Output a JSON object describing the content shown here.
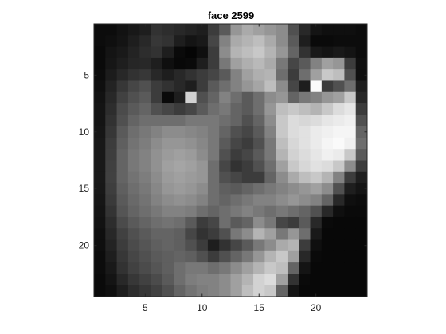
{
  "chart_data": {
    "type": "heatmap",
    "title": "face 2599",
    "xlabel": "",
    "ylabel": "",
    "colormap": "gray",
    "value_range": [
      0,
      255
    ],
    "rows": 24,
    "cols": 24,
    "xlim": [
      0.5,
      24.5
    ],
    "ylim": [
      0.5,
      24.5
    ],
    "y_direction": "reverse",
    "x_ticks": [
      5,
      10,
      15,
      20
    ],
    "y_ticks": [
      5,
      10,
      15,
      20
    ],
    "x_tick_labels": [
      "5",
      "10",
      "15",
      "20"
    ],
    "y_tick_labels": [
      "5",
      "10",
      "15",
      "20"
    ],
    "values": [
      [
        12,
        12,
        18,
        24,
        30,
        50,
        45,
        40,
        35,
        30,
        60,
        90,
        150,
        170,
        160,
        150,
        140,
        80,
        40,
        20,
        15,
        15,
        15,
        12
      ],
      [
        12,
        15,
        20,
        30,
        40,
        55,
        50,
        30,
        20,
        25,
        70,
        130,
        170,
        180,
        190,
        170,
        140,
        90,
        30,
        10,
        10,
        12,
        12,
        12
      ],
      [
        10,
        20,
        25,
        35,
        45,
        50,
        30,
        10,
        5,
        15,
        60,
        140,
        180,
        190,
        200,
        180,
        150,
        100,
        50,
        25,
        20,
        25,
        20,
        12
      ],
      [
        10,
        22,
        30,
        38,
        40,
        30,
        15,
        8,
        10,
        30,
        60,
        120,
        160,
        175,
        185,
        170,
        120,
        70,
        90,
        130,
        160,
        150,
        60,
        15
      ],
      [
        12,
        28,
        40,
        50,
        55,
        40,
        30,
        40,
        50,
        60,
        70,
        90,
        130,
        160,
        175,
        180,
        110,
        60,
        110,
        160,
        200,
        190,
        80,
        15
      ],
      [
        15,
        35,
        55,
        70,
        80,
        60,
        50,
        40,
        30,
        60,
        90,
        110,
        130,
        150,
        165,
        190,
        140,
        70,
        30,
        250,
        60,
        80,
        110,
        30
      ],
      [
        18,
        40,
        65,
        80,
        90,
        60,
        10,
        30,
        210,
        80,
        100,
        130,
        110,
        90,
        110,
        140,
        150,
        100,
        120,
        130,
        150,
        160,
        200,
        40
      ],
      [
        20,
        45,
        75,
        90,
        100,
        80,
        70,
        60,
        70,
        90,
        110,
        120,
        100,
        90,
        110,
        150,
        190,
        200,
        190,
        180,
        200,
        220,
        230,
        60
      ],
      [
        20,
        50,
        80,
        100,
        110,
        110,
        110,
        110,
        120,
        120,
        120,
        110,
        100,
        80,
        100,
        140,
        200,
        220,
        215,
        220,
        230,
        235,
        240,
        80
      ],
      [
        22,
        55,
        90,
        110,
        120,
        130,
        140,
        140,
        135,
        130,
        120,
        100,
        80,
        70,
        90,
        130,
        200,
        220,
        225,
        235,
        240,
        245,
        245,
        100
      ],
      [
        24,
        60,
        95,
        115,
        125,
        140,
        150,
        150,
        145,
        135,
        120,
        90,
        70,
        60,
        80,
        120,
        190,
        215,
        225,
        235,
        245,
        250,
        240,
        110
      ],
      [
        25,
        62,
        100,
        120,
        130,
        145,
        155,
        160,
        155,
        140,
        120,
        80,
        60,
        70,
        90,
        120,
        180,
        210,
        220,
        230,
        240,
        235,
        200,
        90
      ],
      [
        25,
        64,
        100,
        120,
        130,
        145,
        160,
        165,
        160,
        150,
        110,
        70,
        50,
        60,
        80,
        110,
        160,
        200,
        215,
        225,
        220,
        200,
        140,
        60
      ],
      [
        25,
        65,
        100,
        115,
        125,
        140,
        155,
        160,
        155,
        150,
        110,
        80,
        70,
        60,
        60,
        100,
        140,
        170,
        190,
        200,
        180,
        130,
        60,
        30
      ],
      [
        24,
        62,
        95,
        110,
        120,
        135,
        150,
        155,
        150,
        140,
        110,
        95,
        90,
        100,
        110,
        120,
        130,
        140,
        150,
        160,
        140,
        80,
        30,
        20
      ],
      [
        22,
        58,
        90,
        105,
        115,
        130,
        140,
        145,
        140,
        130,
        110,
        100,
        110,
        120,
        130,
        130,
        140,
        150,
        140,
        130,
        100,
        40,
        15,
        12
      ],
      [
        20,
        52,
        85,
        100,
        110,
        120,
        130,
        130,
        125,
        110,
        100,
        110,
        120,
        130,
        120,
        110,
        120,
        110,
        100,
        80,
        40,
        15,
        10,
        10
      ],
      [
        18,
        45,
        75,
        90,
        100,
        110,
        115,
        110,
        90,
        60,
        70,
        110,
        90,
        100,
        140,
        120,
        70,
        60,
        90,
        40,
        10,
        8,
        8,
        8
      ],
      [
        15,
        40,
        65,
        80,
        90,
        100,
        100,
        95,
        70,
        50,
        60,
        80,
        120,
        140,
        180,
        160,
        120,
        150,
        110,
        25,
        8,
        8,
        8,
        8
      ],
      [
        15,
        35,
        60,
        75,
        85,
        95,
        100,
        95,
        80,
        60,
        30,
        50,
        70,
        90,
        120,
        140,
        170,
        180,
        60,
        15,
        8,
        8,
        8,
        8
      ],
      [
        12,
        30,
        55,
        70,
        80,
        90,
        95,
        100,
        95,
        80,
        60,
        80,
        100,
        120,
        150,
        180,
        200,
        160,
        40,
        10,
        8,
        8,
        8,
        8
      ],
      [
        12,
        25,
        50,
        65,
        75,
        85,
        95,
        110,
        120,
        120,
        110,
        120,
        140,
        160,
        180,
        200,
        190,
        100,
        20,
        8,
        8,
        8,
        8,
        8
      ],
      [
        10,
        20,
        40,
        55,
        65,
        75,
        90,
        110,
        125,
        130,
        130,
        140,
        160,
        180,
        210,
        220,
        160,
        50,
        10,
        8,
        8,
        8,
        8,
        8
      ],
      [
        10,
        15,
        30,
        45,
        55,
        65,
        80,
        100,
        115,
        125,
        130,
        140,
        160,
        190,
        210,
        200,
        100,
        20,
        8,
        8,
        8,
        8,
        8,
        8
      ]
    ]
  }
}
